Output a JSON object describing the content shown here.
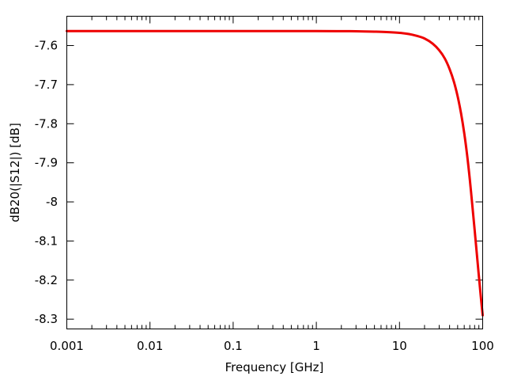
{
  "chart_data": {
    "type": "line",
    "title": "",
    "xlabel": "Frequency [GHz]",
    "ylabel": "dB20(|S12|) [dB]",
    "x_scale": "log",
    "xlim": [
      0.001,
      100
    ],
    "ylim": [
      -8.325,
      -7.525
    ],
    "grid": false,
    "legend": "none",
    "x_ticks": [
      {
        "value": 0.001,
        "label": "0.001"
      },
      {
        "value": 0.01,
        "label": "0.01"
      },
      {
        "value": 0.1,
        "label": "0.1"
      },
      {
        "value": 1,
        "label": "1"
      },
      {
        "value": 10,
        "label": "10"
      },
      {
        "value": 100,
        "label": "100"
      }
    ],
    "y_ticks": [
      {
        "value": -7.6,
        "label": "-7.6"
      },
      {
        "value": -7.7,
        "label": "-7.7"
      },
      {
        "value": -7.8,
        "label": "-7.8"
      },
      {
        "value": -7.9,
        "label": "-7.9"
      },
      {
        "value": -8.0,
        "label": "-8"
      },
      {
        "value": -8.1,
        "label": "-8.1"
      },
      {
        "value": -8.2,
        "label": "-8.2"
      },
      {
        "value": -8.3,
        "label": "-8.3"
      }
    ],
    "series": [
      {
        "color": "#ee0000",
        "x": [
          0.001,
          0.01,
          0.1,
          1,
          2,
          3,
          5,
          7,
          10,
          13,
          16,
          20,
          25,
          30,
          35,
          40,
          45,
          50,
          55,
          60,
          65,
          70,
          75,
          80,
          85,
          90,
          95,
          100
        ],
        "y": [
          -7.563,
          -7.563,
          -7.563,
          -7.563,
          -7.5632,
          -7.5635,
          -7.5645,
          -7.5655,
          -7.5675,
          -7.5705,
          -7.575,
          -7.582,
          -7.595,
          -7.612,
          -7.633,
          -7.66,
          -7.692,
          -7.73,
          -7.774,
          -7.824,
          -7.88,
          -7.942,
          -8.008,
          -8.071,
          -8.132,
          -8.19,
          -8.243,
          -8.29
        ]
      }
    ]
  }
}
